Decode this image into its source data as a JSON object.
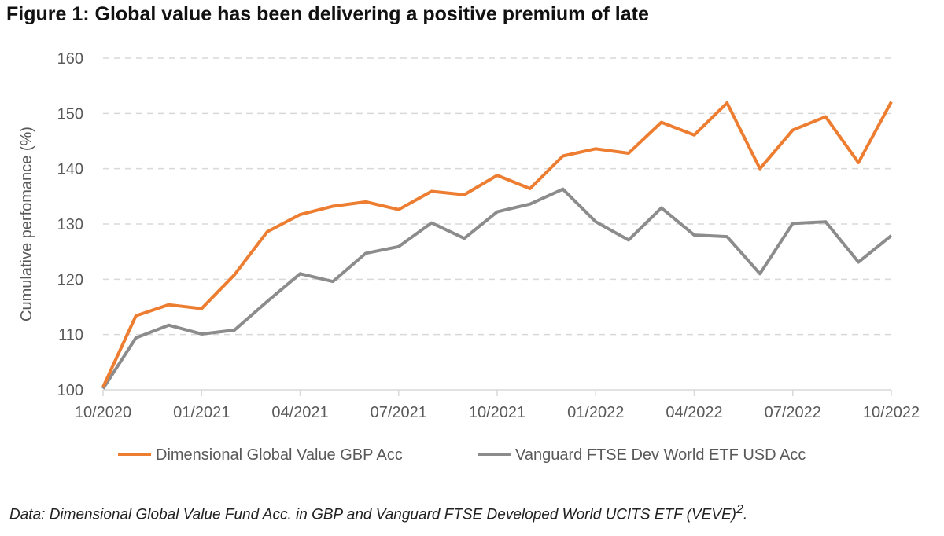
{
  "chart_data": {
    "type": "line",
    "title": "Figure 1: Global value has been delivering a positive premium of late",
    "ylabel": "Cumulative perfomance (%)",
    "xlabel": "",
    "ylim": [
      100,
      160
    ],
    "yticks": [
      100,
      110,
      120,
      130,
      140,
      150,
      160
    ],
    "xtick_labels": [
      "10/2020",
      "01/2021",
      "04/2021",
      "07/2021",
      "10/2021",
      "01/2022",
      "04/2022",
      "07/2022",
      "10/2022"
    ],
    "x": [
      "10/2020",
      "11/2020",
      "12/2020",
      "01/2021",
      "02/2021",
      "03/2021",
      "04/2021",
      "05/2021",
      "06/2021",
      "07/2021",
      "08/2021",
      "09/2021",
      "10/2021",
      "11/2021",
      "12/2021",
      "01/2022",
      "02/2022",
      "03/2022",
      "04/2022",
      "05/2022",
      "06/2022",
      "07/2022",
      "08/2022",
      "09/2022",
      "10/2022"
    ],
    "grid": "horizontal-dashed",
    "legend": "bottom",
    "series": [
      {
        "name": "Dimensional Global Value GBP Acc",
        "color": "#ED7D31",
        "values": [
          100.5,
          113.4,
          115.4,
          114.7,
          120.8,
          128.6,
          131.7,
          133.2,
          134.0,
          132.6,
          135.9,
          135.3,
          138.8,
          136.4,
          142.3,
          143.6,
          142.8,
          148.4,
          146.1,
          151.9,
          140.0,
          147.0,
          149.4,
          141.1,
          152.1
        ]
      },
      {
        "name": "Vanguard FTSE Dev World ETF USD Acc",
        "color": "#8C8C8C",
        "values": [
          100.2,
          109.4,
          111.7,
          110.1,
          110.8,
          116.0,
          121.0,
          119.6,
          124.7,
          125.9,
          130.2,
          127.4,
          132.2,
          133.6,
          136.3,
          130.4,
          127.1,
          132.9,
          128.0,
          127.7,
          121.0,
          130.1,
          130.4,
          123.1,
          127.9
        ]
      }
    ]
  },
  "footnote": {
    "text": "Data: Dimensional Global Value Fund Acc. in GBP and Vanguard FTSE Developed World UCITS ETF (VEVE)",
    "superscript": "2",
    "end": "."
  }
}
